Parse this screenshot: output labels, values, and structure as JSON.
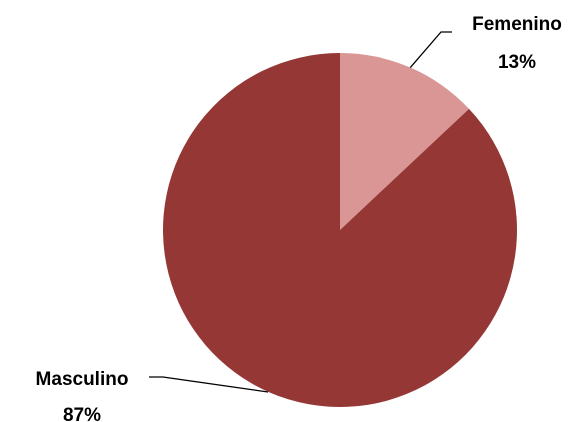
{
  "chart_data": {
    "type": "pie",
    "slices": [
      {
        "label": "Femenino",
        "value": 13,
        "value_label": "13%",
        "color": "#d99694"
      },
      {
        "label": "Masculino",
        "value": 87,
        "value_label": "87%",
        "color": "#953735"
      }
    ],
    "legend": "none",
    "data_labels": "outside-with-leader-lines"
  }
}
